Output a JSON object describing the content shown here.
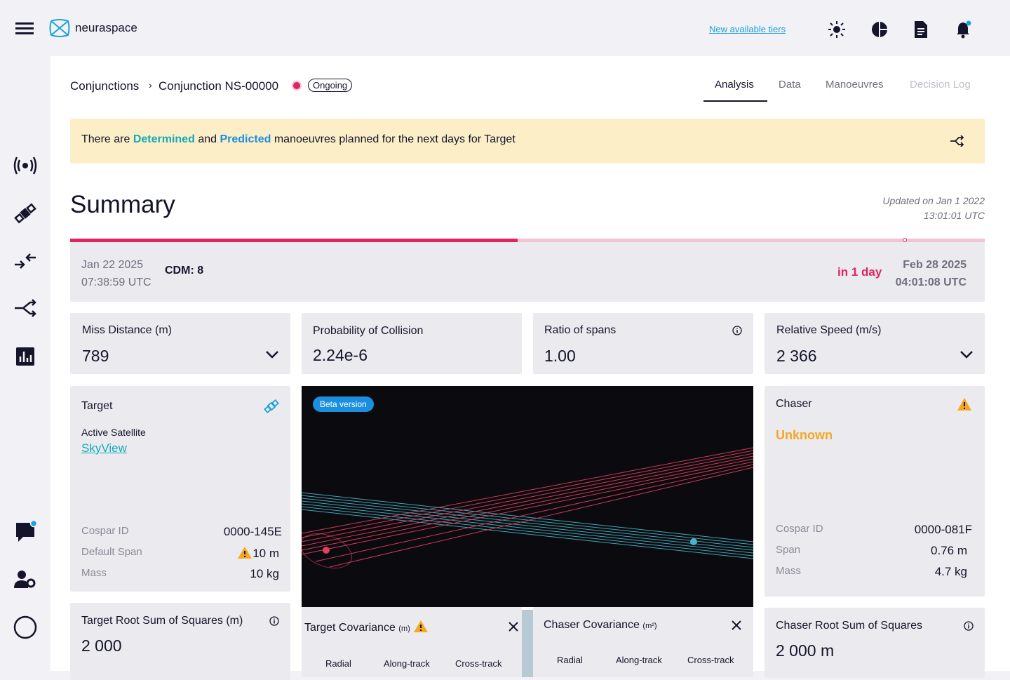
{
  "header": {
    "brand": "neuraspace",
    "tiers_link": "New available tiers"
  },
  "breadcrumb": {
    "items": [
      "Conjunctions",
      "Conjunction NS-00000"
    ],
    "status": "Ongoing"
  },
  "tabs": [
    "Analysis",
    "Data",
    "Manoeuvres",
    "Decision Log"
  ],
  "banner": {
    "parts": [
      "There are",
      "Determined",
      "and",
      "Predicted",
      "manoeuvres planned for the next days for Target"
    ]
  },
  "summary": {
    "title": "Summary",
    "updated": [
      "Updated on Jan 1 2022",
      "13:01:01 UTC"
    ]
  },
  "timeline": {
    "start_date": "Jan 22 2025",
    "start_time": "07:38:59 UTC",
    "cdm": "CDM: 8",
    "countdown": "in 1 day",
    "end_date": "Feb 28 2025",
    "end_time": "04:01:08 UTC"
  },
  "metrics": [
    {
      "label": "Miss Distance (m)",
      "value": "789"
    },
    {
      "label": "Probability of Collision",
      "value": "2.24e-6"
    },
    {
      "label": "Ratio of spans",
      "value": "1.00"
    },
    {
      "label": "Relative Speed (m/s)",
      "value": "2 366"
    }
  ],
  "target": {
    "title": "Target",
    "type": "Active Satellite",
    "link": "SkyView",
    "fields": [
      [
        "Cospar ID",
        "0000-145E"
      ],
      [
        "Default Span",
        "10 m"
      ],
      [
        "Mass",
        "10 kg"
      ]
    ]
  },
  "viz": {
    "badge": "Beta version"
  },
  "chaser": {
    "title": "Chaser",
    "status": "Unknown",
    "fields": [
      [
        "Cospar ID",
        "0000-081F"
      ],
      [
        "Span",
        "0.76 m"
      ],
      [
        "Mass",
        "4.7 kg"
      ]
    ]
  },
  "target_rss": {
    "label": "Target Root Sum of Squares (m)",
    "value": "2 000"
  },
  "target_cov": {
    "title": "Target Covariance",
    "unit": "(m)",
    "columns": [
      "Radial",
      "Along-track",
      "Cross-track"
    ]
  },
  "chaser_cov": {
    "title": "Chaser Covariance",
    "unit": "(m²)",
    "columns": [
      "Radial",
      "Along-track",
      "Cross-track"
    ]
  },
  "chaser_rss": {
    "label": "Chaser Root Sum of Squares",
    "value": "2 000 m"
  }
}
